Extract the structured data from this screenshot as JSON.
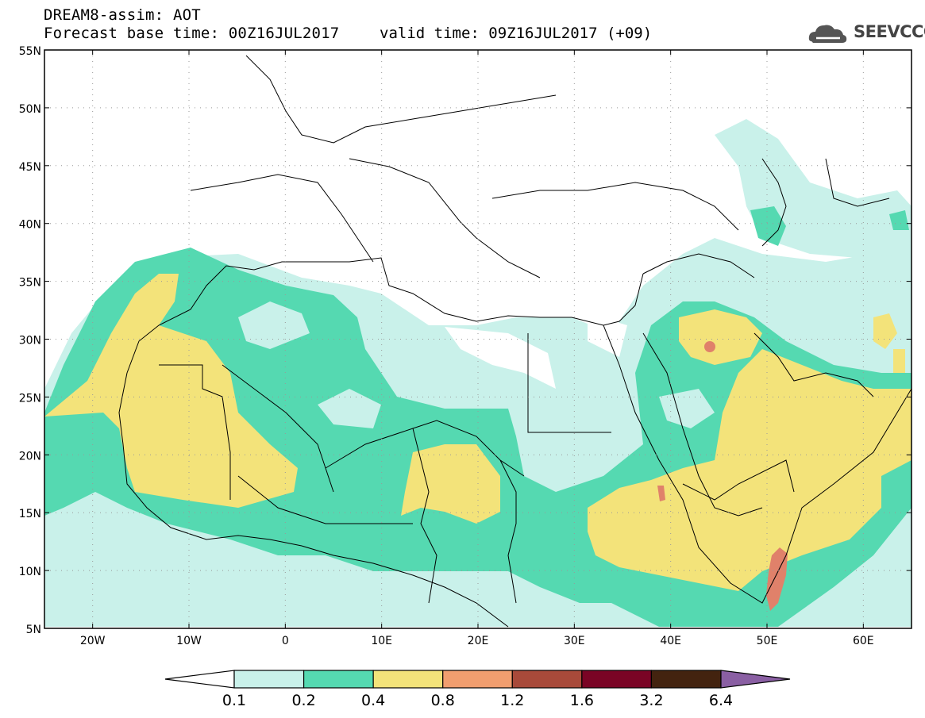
{
  "header": {
    "line1": "DREAM8-assim: AOT",
    "line2": "Forecast base time: 00Z16JUL2017",
    "line3": "valid time: 09Z16JUL2017 (+09)"
  },
  "logo": {
    "text": "SEEVCCC",
    "icon": "cloud-icon"
  },
  "map": {
    "lon_range": [
      -25,
      65
    ],
    "lat_range": [
      5,
      55
    ],
    "lat_ticks": [
      "55N",
      "50N",
      "45N",
      "40N",
      "35N",
      "30N",
      "25N",
      "20N",
      "15N",
      "10N",
      "5N"
    ],
    "lon_ticks": [
      "20W",
      "10W",
      "0",
      "10E",
      "20E",
      "30E",
      "40E",
      "50E",
      "60E"
    ]
  },
  "legend": {
    "labels": [
      "0.1",
      "0.2",
      "0.4",
      "0.8",
      "1.2",
      "1.6",
      "3.2",
      "6.4"
    ],
    "colors": [
      "#ffffff",
      "#c9f1ea",
      "#55d9b1",
      "#f3e37a",
      "#f19e6f",
      "#a84a3a",
      "#7a0425",
      "#43230f",
      "#8a5fa3"
    ]
  }
}
